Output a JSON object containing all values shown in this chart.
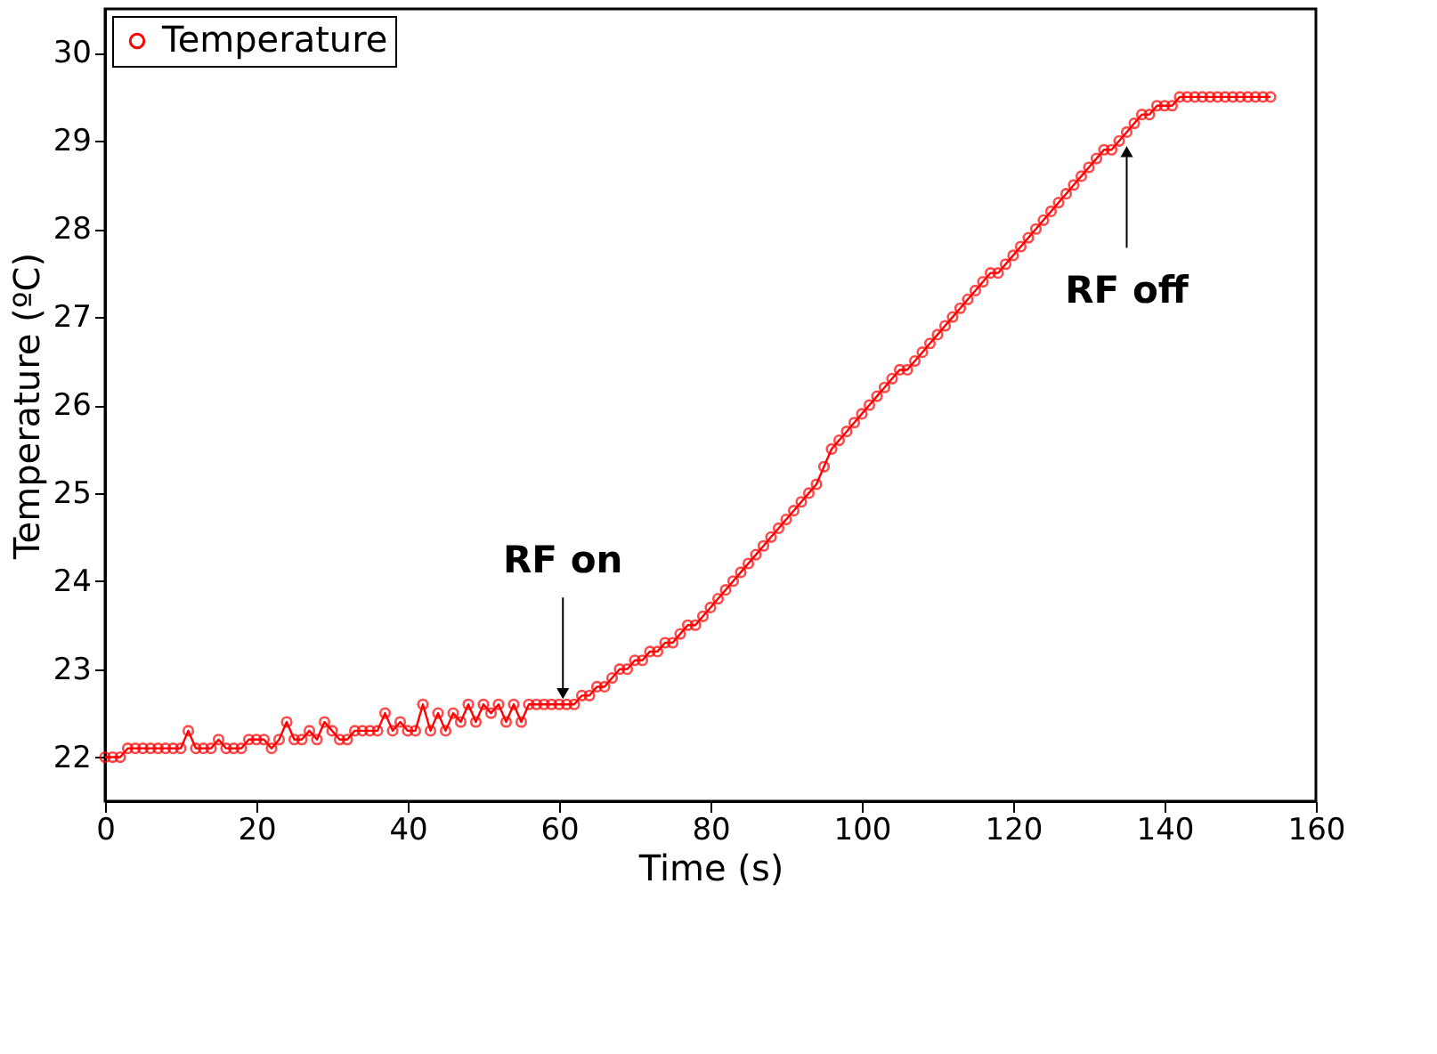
{
  "chart_data": {
    "type": "line",
    "xlabel": "Time (s)",
    "ylabel": "Temperature (ºC)",
    "x": [
      0,
      1,
      2,
      3,
      4,
      5,
      6,
      7,
      8,
      9,
      10,
      11,
      12,
      13,
      14,
      15,
      16,
      17,
      18,
      19,
      20,
      21,
      22,
      23,
      24,
      25,
      26,
      27,
      28,
      29,
      30,
      31,
      32,
      33,
      34,
      35,
      36,
      37,
      38,
      39,
      40,
      41,
      42,
      43,
      44,
      45,
      46,
      47,
      48,
      49,
      50,
      51,
      52,
      53,
      54,
      55,
      56,
      57,
      58,
      59,
      60,
      61,
      62,
      63,
      64,
      65,
      66,
      67,
      68,
      69,
      70,
      71,
      72,
      73,
      74,
      75,
      76,
      77,
      78,
      79,
      80,
      81,
      82,
      83,
      84,
      85,
      86,
      87,
      88,
      89,
      90,
      91,
      92,
      93,
      94,
      95,
      96,
      97,
      98,
      99,
      100,
      101,
      102,
      103,
      104,
      105,
      106,
      107,
      108,
      109,
      110,
      111,
      112,
      113,
      114,
      115,
      116,
      117,
      118,
      119,
      120,
      121,
      122,
      123,
      124,
      125,
      126,
      127,
      128,
      129,
      130,
      131,
      132,
      133,
      134,
      135,
      136,
      137,
      138,
      139,
      140,
      141,
      142,
      143,
      144,
      145,
      146,
      147,
      148,
      149,
      150,
      151,
      152,
      153,
      154
    ],
    "series": [
      {
        "name": "Temperature",
        "color": "#ff0000",
        "values": [
          22.0,
          22.0,
          22.0,
          22.1,
          22.1,
          22.1,
          22.1,
          22.1,
          22.1,
          22.1,
          22.1,
          22.3,
          22.1,
          22.1,
          22.1,
          22.2,
          22.1,
          22.1,
          22.1,
          22.2,
          22.2,
          22.2,
          22.1,
          22.2,
          22.4,
          22.2,
          22.2,
          22.3,
          22.2,
          22.4,
          22.3,
          22.2,
          22.2,
          22.3,
          22.3,
          22.3,
          22.3,
          22.5,
          22.3,
          22.4,
          22.3,
          22.3,
          22.6,
          22.3,
          22.5,
          22.3,
          22.5,
          22.4,
          22.6,
          22.4,
          22.6,
          22.5,
          22.6,
          22.4,
          22.6,
          22.4,
          22.6,
          22.6,
          22.6,
          22.6,
          22.6,
          22.6,
          22.6,
          22.7,
          22.7,
          22.8,
          22.8,
          22.9,
          23.0,
          23.0,
          23.1,
          23.1,
          23.2,
          23.2,
          23.3,
          23.3,
          23.4,
          23.5,
          23.5,
          23.6,
          23.7,
          23.8,
          23.9,
          24.0,
          24.1,
          24.2,
          24.3,
          24.4,
          24.5,
          24.6,
          24.7,
          24.8,
          24.9,
          25.0,
          25.1,
          25.3,
          25.5,
          25.6,
          25.7,
          25.8,
          25.9,
          26.0,
          26.1,
          26.2,
          26.3,
          26.4,
          26.4,
          26.5,
          26.6,
          26.7,
          26.8,
          26.9,
          27.0,
          27.1,
          27.2,
          27.3,
          27.4,
          27.5,
          27.5,
          27.6,
          27.7,
          27.8,
          27.9,
          28.0,
          28.1,
          28.2,
          28.3,
          28.4,
          28.5,
          28.6,
          28.7,
          28.8,
          28.9,
          28.9,
          29.0,
          29.1,
          29.2,
          29.3,
          29.3,
          29.4,
          29.4,
          29.4,
          29.5,
          29.5,
          29.5,
          29.5,
          29.5,
          29.5,
          29.5,
          29.5,
          29.5,
          29.5,
          29.5,
          29.5,
          29.5
        ]
      }
    ],
    "xlim": [
      0,
      160
    ],
    "xticks": [
      0,
      20,
      40,
      60,
      80,
      100,
      120,
      140,
      160
    ],
    "ylim": [
      21.5,
      30.5
    ],
    "yticks": [
      22,
      23,
      24,
      25,
      26,
      27,
      28,
      29,
      30
    ],
    "marker": "circle",
    "line_style": "solid",
    "grid": false,
    "legend": "top left",
    "annotations": [
      {
        "text": "RF on",
        "x": 60.5,
        "y": 22.6
      },
      {
        "text": "RF off",
        "x": 135,
        "y": 29.0
      }
    ]
  }
}
